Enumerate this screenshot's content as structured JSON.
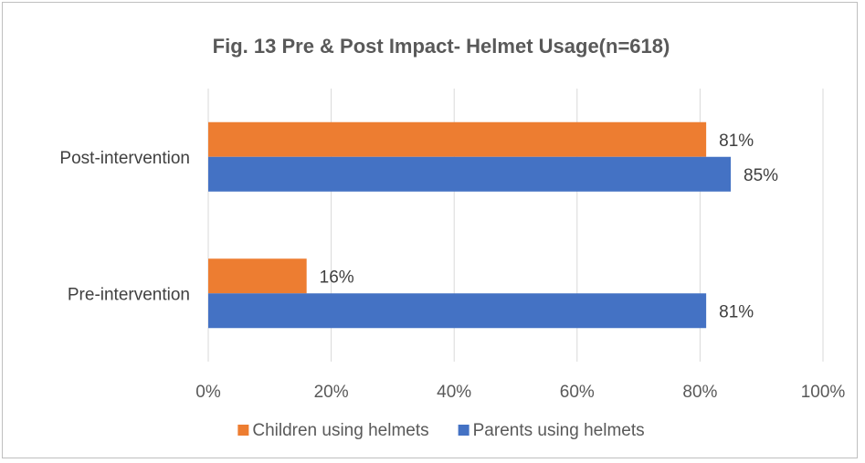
{
  "chart_data": {
    "type": "bar",
    "orientation": "horizontal",
    "title": "Fig. 13 Pre & Post Impact- Helmet Usage(n=618)",
    "categories": [
      "Post-intervention",
      "Pre-intervention"
    ],
    "series": [
      {
        "name": "Children using helmets",
        "color": "#ed7d31",
        "values": [
          81,
          16
        ],
        "labels": [
          "81%",
          "16%"
        ]
      },
      {
        "name": "Parents using helmets",
        "color": "#4472c4",
        "values": [
          85,
          81
        ],
        "labels": [
          "85%",
          "81%"
        ]
      }
    ],
    "xlim": [
      0,
      100
    ],
    "x_ticks": [
      0,
      20,
      40,
      60,
      80,
      100
    ],
    "x_tick_labels": [
      "0%",
      "20%",
      "40%",
      "60%",
      "80%",
      "100%"
    ],
    "grid": true,
    "legend_position": "bottom",
    "gridline_color": "#d9d9d9"
  }
}
